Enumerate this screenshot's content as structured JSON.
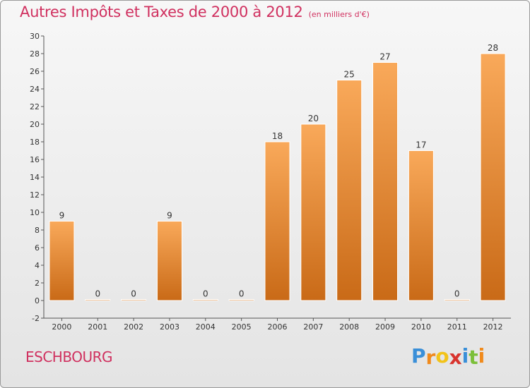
{
  "title": "Autres Impôts et Taxes de 2000 à 2012",
  "subtitle": "(en milliers d'€)",
  "commune": "ESCHBOURG",
  "logo": {
    "letters": [
      "P",
      "r",
      "o",
      "x",
      "i",
      "t",
      "i"
    ],
    "colors": [
      "#3a8fd8",
      "#f08a1c",
      "#f2c31a",
      "#d8342e",
      "#3a8fd8",
      "#7cbf3a",
      "#f08a1c"
    ]
  },
  "colors": {
    "bar_light": "#f9a95a",
    "bar_dark": "#c96a17",
    "title": "#d0305f"
  },
  "chart_data": {
    "type": "bar",
    "categories": [
      "2000",
      "2001",
      "2002",
      "2003",
      "2004",
      "2005",
      "2006",
      "2007",
      "2008",
      "2009",
      "2010",
      "2011",
      "2012"
    ],
    "values": [
      9,
      0,
      0,
      9,
      0,
      0,
      18,
      20,
      25,
      27,
      17,
      0,
      28
    ],
    "ylim": [
      -2,
      30
    ],
    "yticks": [
      -2,
      0,
      2,
      4,
      6,
      8,
      10,
      12,
      14,
      16,
      18,
      20,
      22,
      24,
      26,
      28,
      30
    ],
    "grid": false,
    "data_labels": true
  }
}
